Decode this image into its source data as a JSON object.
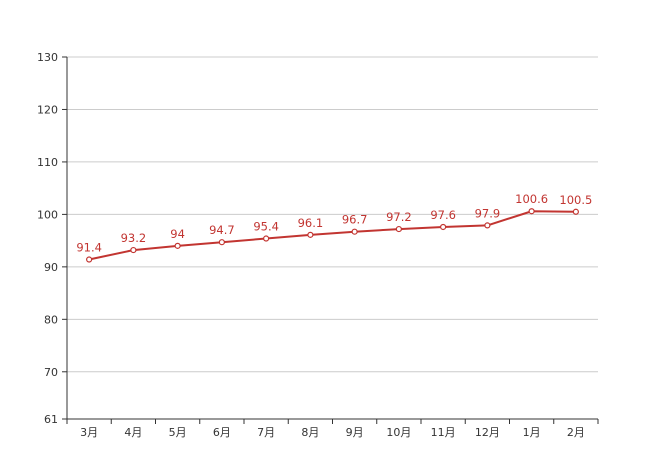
{
  "chart_data": {
    "type": "line",
    "title": "",
    "xlabel": "",
    "ylabel": "",
    "categories": [
      "3月",
      "4月",
      "5月",
      "6月",
      "7月",
      "8月",
      "9月",
      "10月",
      "11月",
      "12月",
      "1月",
      "2月"
    ],
    "series": [
      {
        "values": [
          91.4,
          93.2,
          94,
          94.7,
          95.4,
          96.1,
          96.7,
          97.2,
          97.6,
          97.9,
          100.6,
          100.5
        ],
        "labels": [
          "91.4",
          "93.2",
          "94",
          "94.7",
          "95.4",
          "96.1",
          "96.7",
          "97.2",
          "97.6",
          "97.9",
          "100.6",
          "100.5"
        ],
        "color": "#c23531"
      }
    ],
    "ylim": [
      61,
      130
    ],
    "yticks": [
      "61",
      "70",
      "80",
      "90",
      "100",
      "110",
      "120",
      "130"
    ],
    "ytick_values": [
      61,
      70,
      80,
      90,
      100,
      110,
      120,
      130
    ],
    "grid": true,
    "legend": "none"
  }
}
